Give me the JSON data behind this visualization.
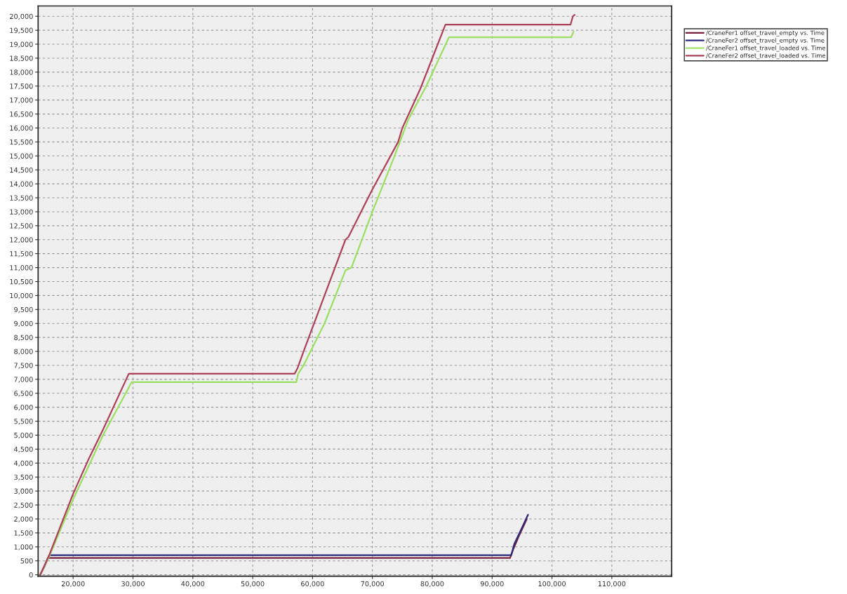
{
  "chart_data": {
    "type": "line",
    "xlim": [
      14150,
      120000
    ],
    "ylim": [
      -50,
      20370
    ],
    "xticks": [
      {
        "value": 20000,
        "label": "20,000"
      },
      {
        "value": 30000,
        "label": "30,000"
      },
      {
        "value": 40000,
        "label": "40,000"
      },
      {
        "value": 50000,
        "label": "50,000"
      },
      {
        "value": 60000,
        "label": "60,000"
      },
      {
        "value": 70000,
        "label": "70,000"
      },
      {
        "value": 80000,
        "label": "80,000"
      },
      {
        "value": 90000,
        "label": "90,000"
      },
      {
        "value": 100000,
        "label": "100,000"
      },
      {
        "value": 110000,
        "label": "110,000"
      }
    ],
    "yticks": [
      {
        "value": 0,
        "label": "0"
      },
      {
        "value": 500,
        "label": "500"
      },
      {
        "value": 1000,
        "label": "1,000"
      },
      {
        "value": 1500,
        "label": "1,500"
      },
      {
        "value": 2000,
        "label": "2,000"
      },
      {
        "value": 2500,
        "label": "2,500"
      },
      {
        "value": 3000,
        "label": "3,000"
      },
      {
        "value": 3500,
        "label": "3,500"
      },
      {
        "value": 4000,
        "label": "4,000"
      },
      {
        "value": 4500,
        "label": "4,500"
      },
      {
        "value": 5000,
        "label": "5,000"
      },
      {
        "value": 5500,
        "label": "5,500"
      },
      {
        "value": 6000,
        "label": "6,000"
      },
      {
        "value": 6500,
        "label": "6,500"
      },
      {
        "value": 7000,
        "label": "7,000"
      },
      {
        "value": 7500,
        "label": "7,500"
      },
      {
        "value": 8000,
        "label": "8,000"
      },
      {
        "value": 8500,
        "label": "8,500"
      },
      {
        "value": 9000,
        "label": "9,000"
      },
      {
        "value": 9500,
        "label": "9,500"
      },
      {
        "value": 10000,
        "label": "10,000"
      },
      {
        "value": 10500,
        "label": "10,500"
      },
      {
        "value": 11000,
        "label": "11,000"
      },
      {
        "value": 11500,
        "label": "11,500"
      },
      {
        "value": 12000,
        "label": "12,000"
      },
      {
        "value": 12500,
        "label": "12,500"
      },
      {
        "value": 13000,
        "label": "13,000"
      },
      {
        "value": 13500,
        "label": "13,500"
      },
      {
        "value": 14000,
        "label": "14,000"
      },
      {
        "value": 14500,
        "label": "14,500"
      },
      {
        "value": 15000,
        "label": "15,000"
      },
      {
        "value": 15500,
        "label": "15,500"
      },
      {
        "value": 16000,
        "label": "16,000"
      },
      {
        "value": 16500,
        "label": "16,500"
      },
      {
        "value": 17000,
        "label": "17,000"
      },
      {
        "value": 17500,
        "label": "17,500"
      },
      {
        "value": 18000,
        "label": "18,000"
      },
      {
        "value": 18500,
        "label": "18,500"
      },
      {
        "value": 19000,
        "label": "19,000"
      },
      {
        "value": 19500,
        "label": "19,500"
      },
      {
        "value": 20000,
        "label": "20,000"
      }
    ],
    "grid": true,
    "legend": "top right",
    "marker": "none",
    "line_style": "solid",
    "series": [
      {
        "name": "/CraneFer1 offset_travel_empty vs. Time",
        "color": "#7a1f3d",
        "x": [
          14500,
          15200,
          15800,
          93000,
          93500,
          94500,
          95800
        ],
        "values": [
          0,
          300,
          600,
          600,
          900,
          1400,
          2000
        ]
      },
      {
        "name": "/CraneFer2 offset_travel_empty vs. Time",
        "color": "#2a2a7a",
        "x": [
          14500,
          15300,
          16000,
          93200,
          93700,
          94800,
          96000
        ],
        "values": [
          0,
          350,
          700,
          700,
          1100,
          1600,
          2150
        ]
      },
      {
        "name": "/CraneFer1 offset_travel_loaded vs. Time",
        "color": "#99e060",
        "x": [
          14500,
          16000,
          20000,
          25000,
          29800,
          57300,
          57600,
          58500,
          62000,
          65500,
          66500,
          70000,
          73700,
          76000,
          79000,
          82800,
          103200,
          103600
        ],
        "values": [
          0,
          650,
          2700,
          5000,
          6900,
          6900,
          7200,
          7500,
          9000,
          10900,
          11000,
          13000,
          15000,
          16300,
          17500,
          19250,
          19250,
          19450
        ]
      },
      {
        "name": "/CraneFer2 offset_travel_loaded vs. Time",
        "color": "#b0405a",
        "x": [
          14500,
          16000,
          20000,
          22500,
          25000,
          29300,
          57000,
          57500,
          58500,
          62000,
          65500,
          66000,
          70000,
          74300,
          75000,
          78000,
          82200,
          103100,
          103500,
          103800
        ],
        "values": [
          0,
          700,
          2900,
          4100,
          5200,
          7200,
          7200,
          7400,
          8000,
          10000,
          12000,
          12100,
          13800,
          15500,
          16000,
          17400,
          19700,
          19700,
          20000,
          20050
        ]
      }
    ]
  }
}
